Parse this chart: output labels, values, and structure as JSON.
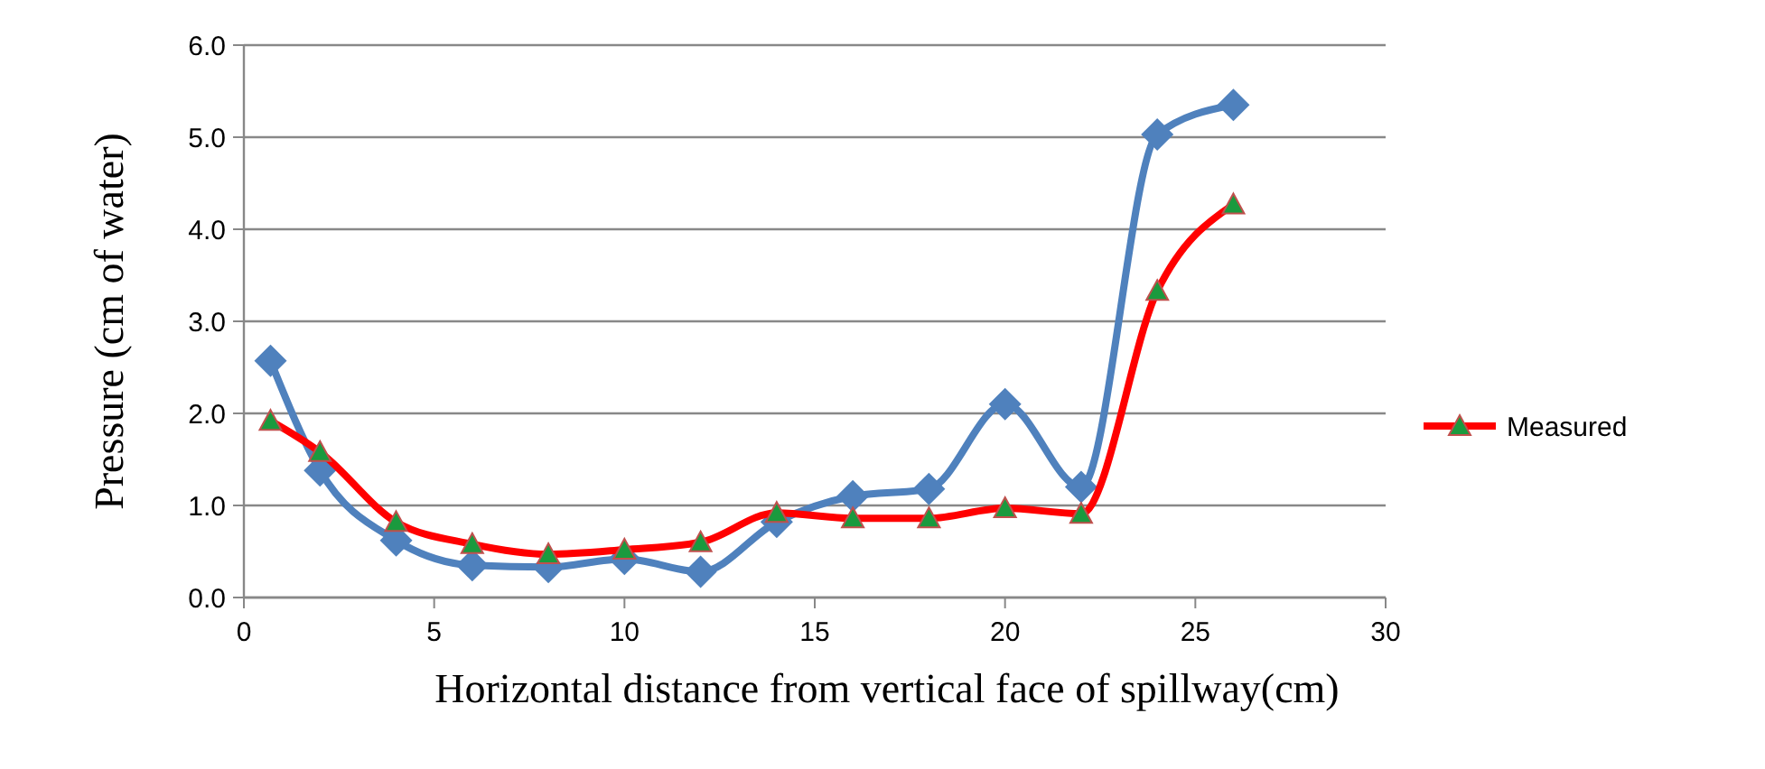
{
  "chart_data": {
    "type": "line",
    "xlabel": "Horizontal distance from vertical face of spillway(cm)",
    "ylabel": "Pressure (cm of water)",
    "x": [
      0.7,
      2,
      4,
      6,
      8,
      10,
      12,
      14,
      16,
      18,
      20,
      22,
      24,
      26
    ],
    "series": [
      {
        "color": "#4f81bd",
        "marker": "diamond",
        "values": [
          2.57,
          1.38,
          0.62,
          0.35,
          0.33,
          0.42,
          0.28,
          0.82,
          1.1,
          1.18,
          2.1,
          1.2,
          5.03,
          5.35
        ]
      },
      {
        "name": "Measured",
        "color": "#ff0000",
        "marker": "triangle",
        "values": [
          1.92,
          1.58,
          0.82,
          0.58,
          0.47,
          0.52,
          0.6,
          0.92,
          0.86,
          0.86,
          0.97,
          0.91,
          3.33,
          4.27
        ]
      }
    ],
    "xlim": [
      0,
      30
    ],
    "xticks": [
      0,
      5,
      10,
      15,
      20,
      25,
      30
    ],
    "ylim": [
      0,
      6
    ],
    "yticks": [
      {
        "value": 0,
        "label": "0.0"
      },
      {
        "value": 1,
        "label": "1.0"
      },
      {
        "value": 2,
        "label": "2.0"
      },
      {
        "value": 3,
        "label": "3.0"
      },
      {
        "value": 4,
        "label": "4.0"
      },
      {
        "value": 5,
        "label": "5.0"
      },
      {
        "value": 6,
        "label": "6.0"
      }
    ],
    "grid": "y",
    "legend": "right"
  }
}
